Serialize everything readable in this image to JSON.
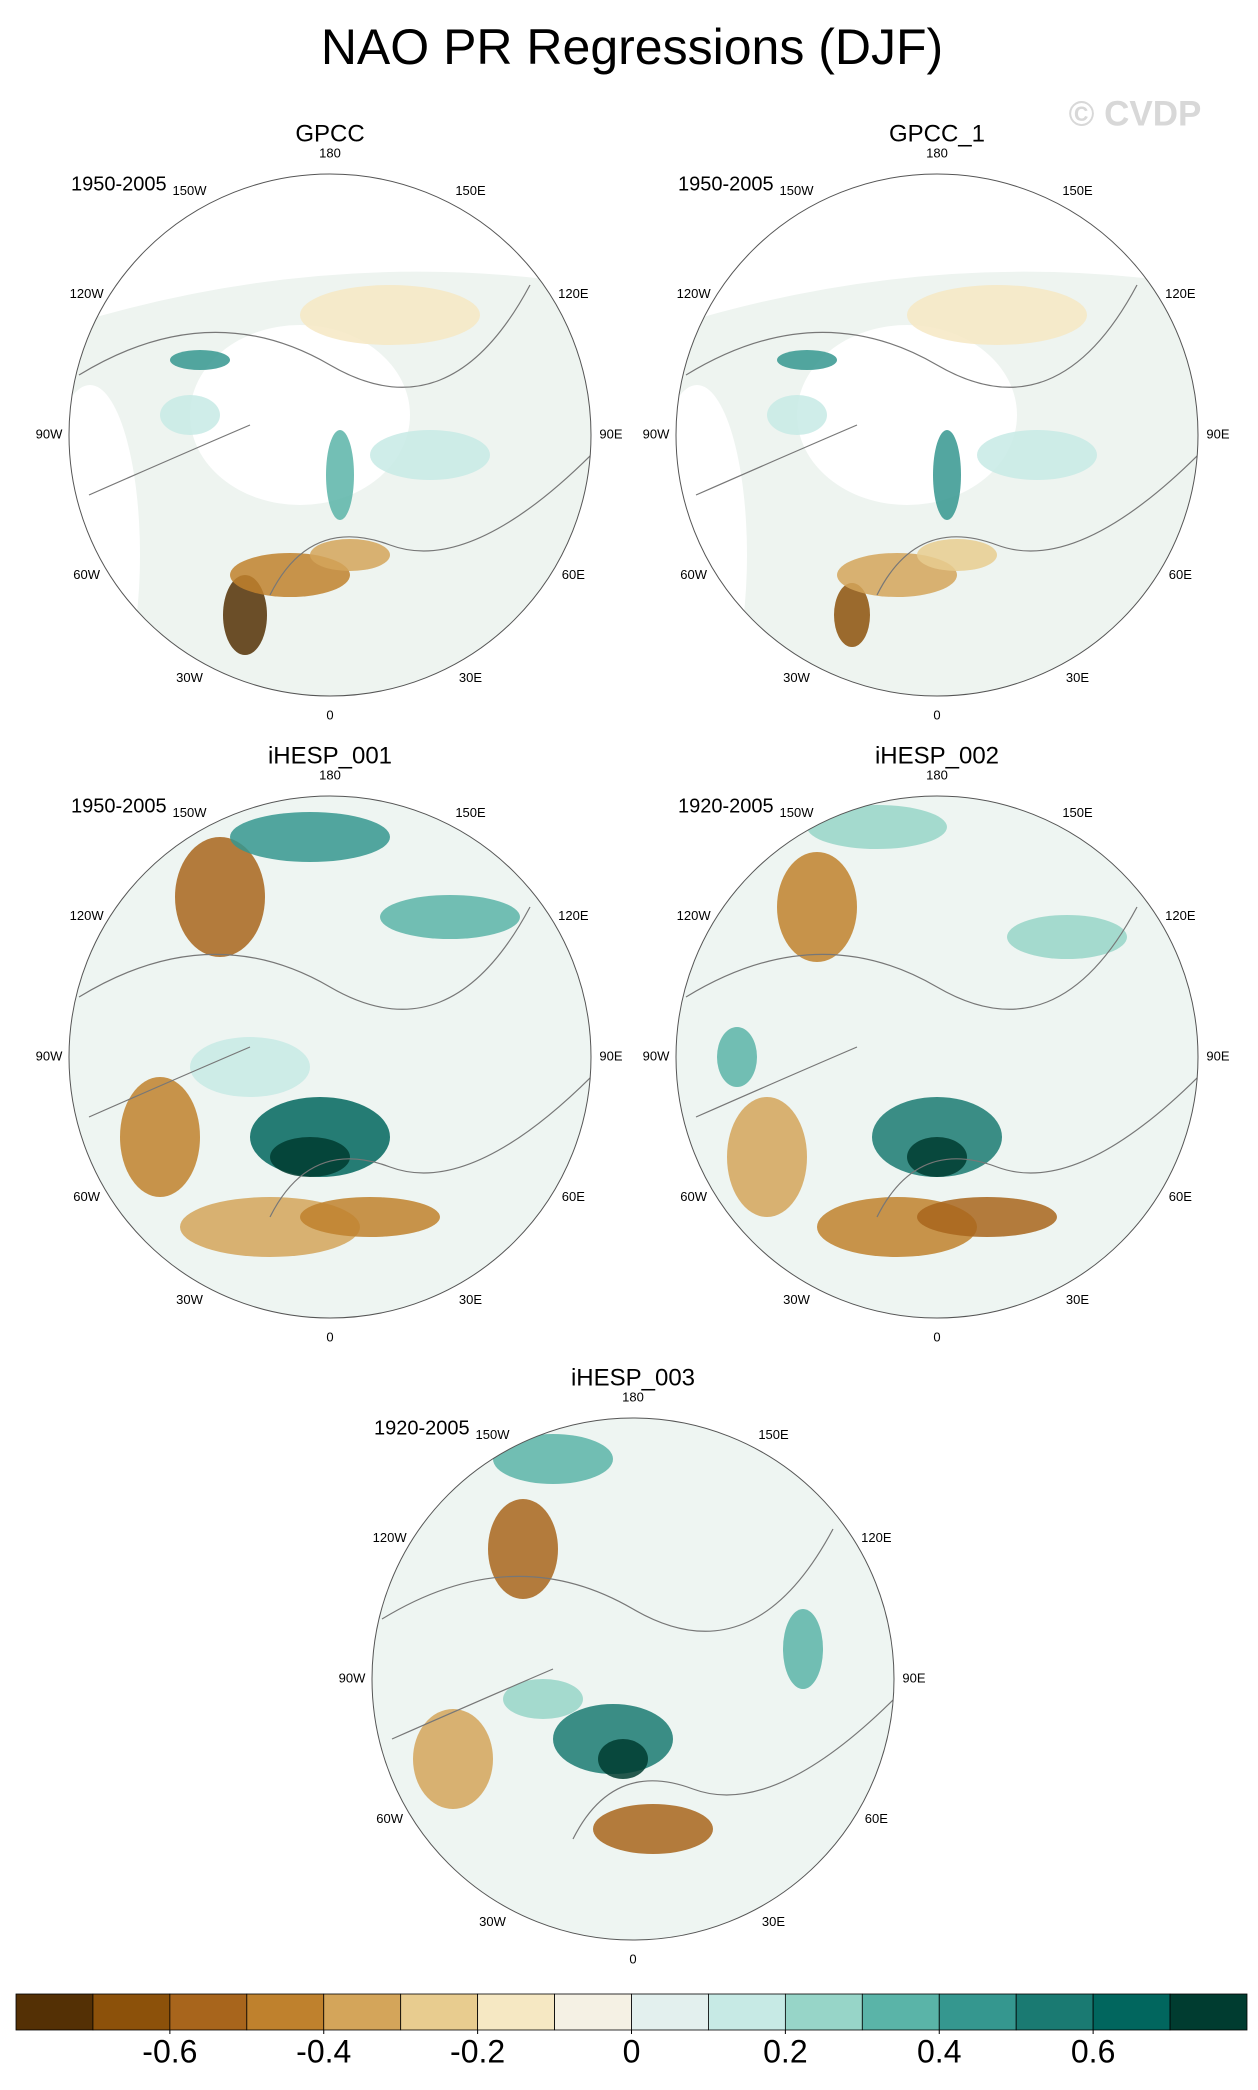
{
  "title": "NAO PR Regressions (DJF)",
  "watermark": "© CVDP",
  "panels": [
    {
      "title": "GPCC",
      "period": "1950-2005"
    },
    {
      "title": "GPCC_1",
      "period": "1950-2005"
    },
    {
      "title": "iHESP_001",
      "period": "1950-2005"
    },
    {
      "title": "iHESP_002",
      "period": "1920-2005"
    },
    {
      "title": "iHESP_003",
      "period": "1920-2005"
    }
  ],
  "longitude_labels": [
    "180",
    "150E",
    "120E",
    "90E",
    "60E",
    "30E",
    "0",
    "30W",
    "60W",
    "90W",
    "120W",
    "150W"
  ],
  "colorbar": {
    "levels": [
      -0.7,
      -0.6,
      -0.5,
      -0.4,
      -0.3,
      -0.2,
      -0.1,
      0,
      0.1,
      0.2,
      0.3,
      0.4,
      0.5,
      0.6,
      0.7
    ],
    "colors": [
      "#543005",
      "#8c510a",
      "#a8651c",
      "#bf812d",
      "#d4a55a",
      "#e8cc8f",
      "#f6e8c3",
      "#f5f1e4",
      "#e3f0ee",
      "#c7eae5",
      "#97d5c8",
      "#5ab4a8",
      "#35978f",
      "#1a7a72",
      "#01665e",
      "#003c30"
    ],
    "ticks": [
      -0.6,
      -0.4,
      -0.2,
      0,
      0.2,
      0.4,
      0.6
    ]
  }
}
